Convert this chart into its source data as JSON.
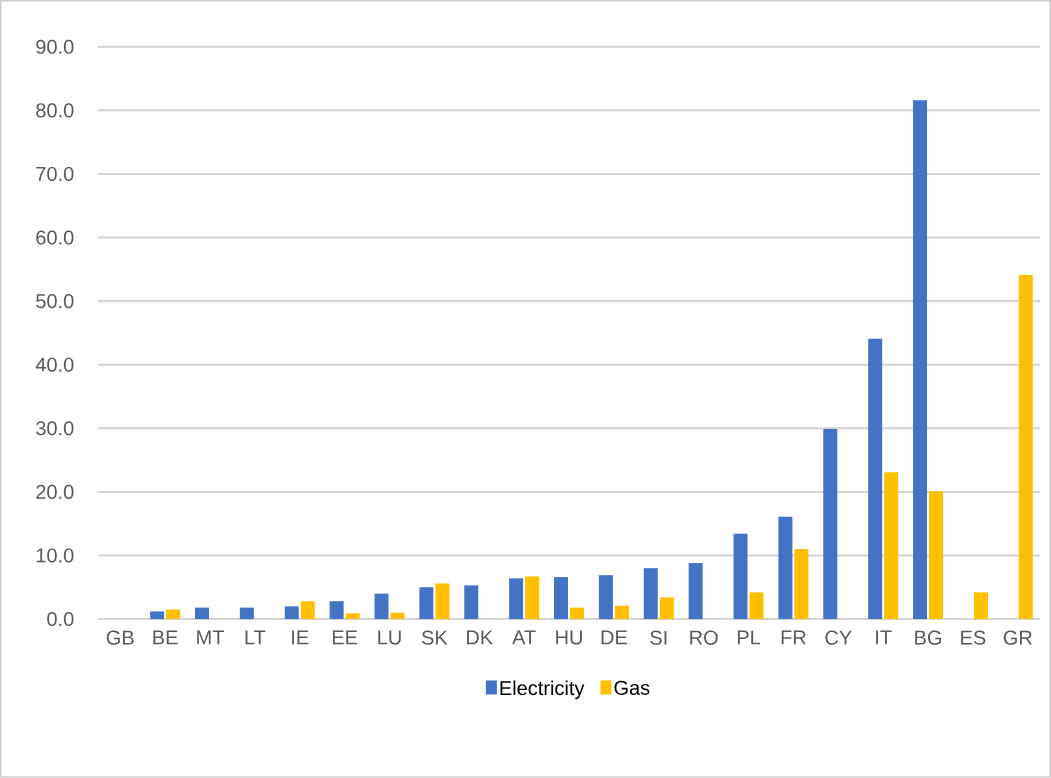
{
  "chart_data": {
    "type": "bar",
    "categories": [
      "GB",
      "BE",
      "MT",
      "LT",
      "IE",
      "EE",
      "LU",
      "SK",
      "DK",
      "AT",
      "HU",
      "DE",
      "SI",
      "RO",
      "PL",
      "FR",
      "CY",
      "IT",
      "BG",
      "ES",
      "GR"
    ],
    "series": [
      {
        "name": "Electricity",
        "color": "#4472c4",
        "values": [
          null,
          1.2,
          1.8,
          1.8,
          2.0,
          2.8,
          4.0,
          5.0,
          5.3,
          6.4,
          6.6,
          6.9,
          8.0,
          8.8,
          13.4,
          16.1,
          29.9,
          44.1,
          81.6,
          null,
          null
        ]
      },
      {
        "name": "Gas",
        "color": "#ffc000",
        "values": [
          null,
          1.5,
          null,
          null,
          2.8,
          0.9,
          1.0,
          5.6,
          null,
          6.7,
          1.8,
          2.1,
          3.4,
          null,
          4.2,
          11.0,
          null,
          23.1,
          20.1,
          4.2,
          54.1
        ]
      }
    ],
    "ylim": [
      0,
      90
    ],
    "yticks": [
      {
        "value": 0,
        "label": "0.0"
      },
      {
        "value": 10,
        "label": "10.0"
      },
      {
        "value": 20,
        "label": "20.0"
      },
      {
        "value": 30,
        "label": "30.0"
      },
      {
        "value": 40,
        "label": "40.0"
      },
      {
        "value": 50,
        "label": "50.0"
      },
      {
        "value": 60,
        "label": "60.0"
      },
      {
        "value": 70,
        "label": "70.0"
      },
      {
        "value": 80,
        "label": "80.0"
      },
      {
        "value": 90,
        "label": "90.0"
      }
    ],
    "grid": "y",
    "legend": "bottom"
  }
}
